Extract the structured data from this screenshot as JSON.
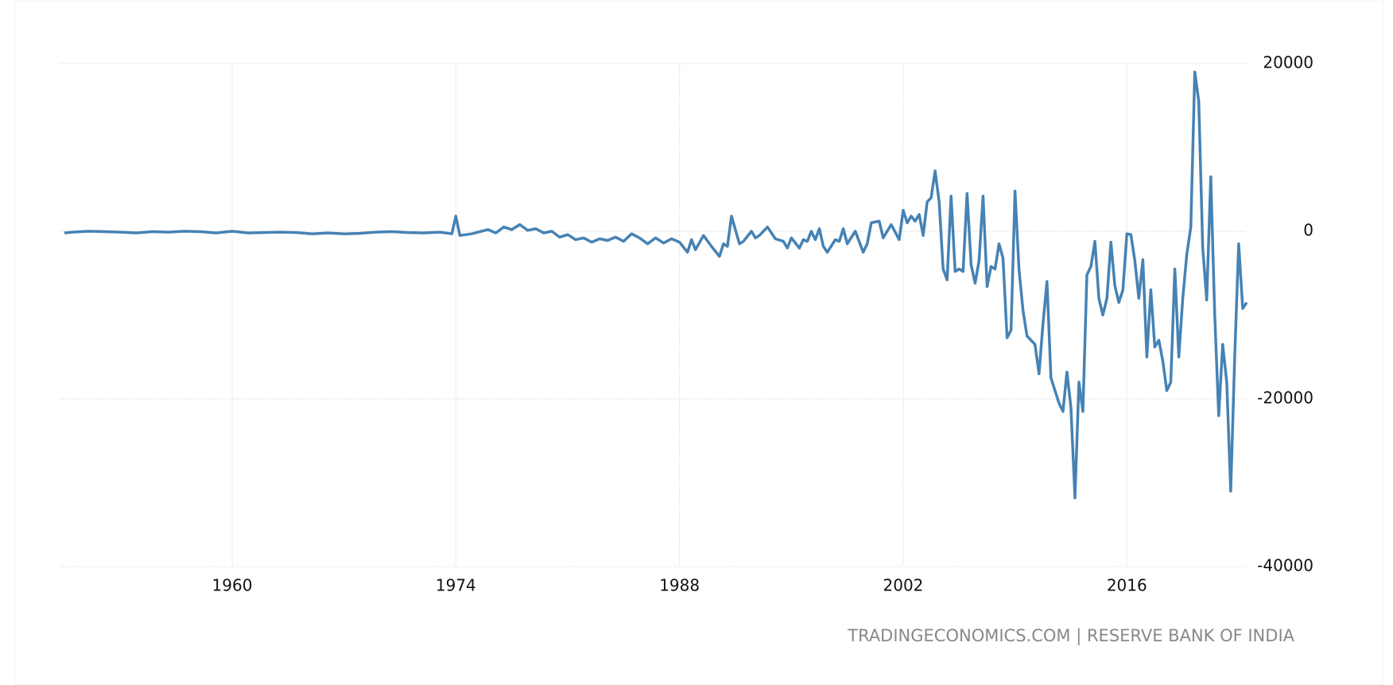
{
  "chart_data": {
    "type": "line",
    "source": "TRADINGECONOMICS.COM | RESERVE BANK OF INDIA",
    "xlim": [
      1949.2,
      2023.7
    ],
    "xticks": [
      1960,
      1974,
      1988,
      2002,
      2016
    ],
    "ylim": [
      -40000,
      20000
    ],
    "yticks": [
      -40000,
      -20000,
      0,
      20000
    ],
    "grid": true,
    "series": [
      {
        "color": "#4682b4",
        "x": [
          1949.5,
          1950,
          1951,
          1952,
          1953,
          1954,
          1955,
          1956,
          1957,
          1958,
          1959,
          1960,
          1961,
          1962,
          1963,
          1964,
          1965,
          1966,
          1967,
          1968,
          1969,
          1970,
          1971,
          1972,
          1973,
          1973.75,
          1974,
          1974.25,
          1975,
          1976,
          1976.5,
          1977,
          1977.5,
          1978,
          1978.5,
          1979,
          1979.5,
          1980,
          1980.5,
          1981,
          1981.5,
          1982,
          1982.5,
          1983,
          1983.5,
          1984,
          1984.5,
          1985,
          1985.5,
          1986,
          1986.5,
          1987,
          1987.5,
          1988,
          1988.5,
          1988.75,
          1989,
          1989.5,
          1990,
          1990.5,
          1990.75,
          1991,
          1991.25,
          1991.75,
          1992,
          1992.5,
          1992.75,
          1993,
          1993.5,
          1994,
          1994.5,
          1994.75,
          1995,
          1995.5,
          1995.75,
          1996,
          1996.25,
          1996.5,
          1996.75,
          1997,
          1997.25,
          1997.75,
          1998,
          1998.25,
          1998.5,
          1999,
          1999.5,
          1999.75,
          2000,
          2000.5,
          2000.75,
          2001.25,
          2001.75,
          2002,
          2002.25,
          2002.5,
          2002.75,
          2003,
          2003.25,
          2003.5,
          2003.75,
          2004,
          2004.25,
          2004.5,
          2004.75,
          2005,
          2005.25,
          2005.5,
          2005.75,
          2006,
          2006.25,
          2006.5,
          2006.75,
          2007,
          2007.25,
          2007.5,
          2007.75,
          2008,
          2008.25,
          2008.5,
          2008.75,
          2009,
          2009.25,
          2009.5,
          2009.75,
          2010,
          2010.25,
          2010.5,
          2010.75,
          2011,
          2011.25,
          2011.5,
          2011.75,
          2012,
          2012.25,
          2012.5,
          2012.75,
          2013,
          2013.25,
          2013.5,
          2013.75,
          2014,
          2014.25,
          2014.5,
          2014.75,
          2015,
          2015.25,
          2015.5,
          2015.75,
          2016,
          2016.25,
          2016.5,
          2016.75,
          2017,
          2017.25,
          2017.5,
          2017.75,
          2018,
          2018.25,
          2018.5,
          2018.75,
          2019,
          2019.25,
          2019.5,
          2019.75,
          2020,
          2020.25,
          2020.5,
          2020.75,
          2021,
          2021.25,
          2021.5,
          2021.75,
          2022,
          2022.25,
          2022.5,
          2022.75,
          2023,
          2023.25,
          2023.5
        ],
        "values": [
          -200,
          -100,
          0,
          -50,
          -100,
          -200,
          -50,
          -100,
          0,
          -50,
          -200,
          0,
          -200,
          -150,
          -100,
          -150,
          -300,
          -200,
          -300,
          -250,
          -100,
          -50,
          -150,
          -200,
          -100,
          -300,
          1800,
          -500,
          -300,
          200,
          -200,
          500,
          200,
          800,
          100,
          300,
          -200,
          0,
          -700,
          -400,
          -1000,
          -800,
          -1300,
          -900,
          -1100,
          -700,
          -1200,
          -300,
          -800,
          -1500,
          -800,
          -1400,
          -900,
          -1300,
          -2500,
          -1000,
          -2200,
          -500,
          -1800,
          -3000,
          -1500,
          -1800,
          1800,
          -1500,
          -1200,
          0,
          -800,
          -500,
          500,
          -900,
          -1200,
          -2000,
          -800,
          -2000,
          -1000,
          -1200,
          0,
          -1000,
          300,
          -1800,
          -2500,
          -1000,
          -1200,
          300,
          -1500,
          0,
          -2500,
          -1500,
          1000,
          1200,
          -800,
          800,
          -1000,
          2500,
          1000,
          1800,
          1200,
          2000,
          -500,
          3500,
          4000,
          7200,
          3500,
          -4500,
          -5800,
          4200,
          -4800,
          -4500,
          -4800,
          4500,
          -4000,
          -6200,
          -3500,
          4200,
          -6600,
          -4200,
          -4500,
          -1500,
          -3200,
          -12700,
          -11800,
          4800,
          -4500,
          -9500,
          -12500,
          -13000,
          -13500,
          -17000,
          -11000,
          -6000,
          -17500,
          -19000,
          -20500,
          -21500,
          -16800,
          -21000,
          -31800,
          -18000,
          -21500,
          -5200,
          -4200,
          -1200,
          -8000,
          -10000,
          -8000,
          -1300,
          -6500,
          -8500,
          -7000,
          -300,
          -400,
          -3500,
          -8000,
          -3400,
          -15000,
          -7000,
          -13800,
          -13000,
          -15500,
          -19000,
          -18000,
          -4500,
          -15000,
          -8000,
          -2800,
          500,
          19000,
          15500,
          -2000,
          -8200,
          6500,
          -10000,
          -22000,
          -13500,
          -18000,
          -31000,
          -15000,
          -1500,
          -9200,
          -8500
        ]
      }
    ]
  }
}
